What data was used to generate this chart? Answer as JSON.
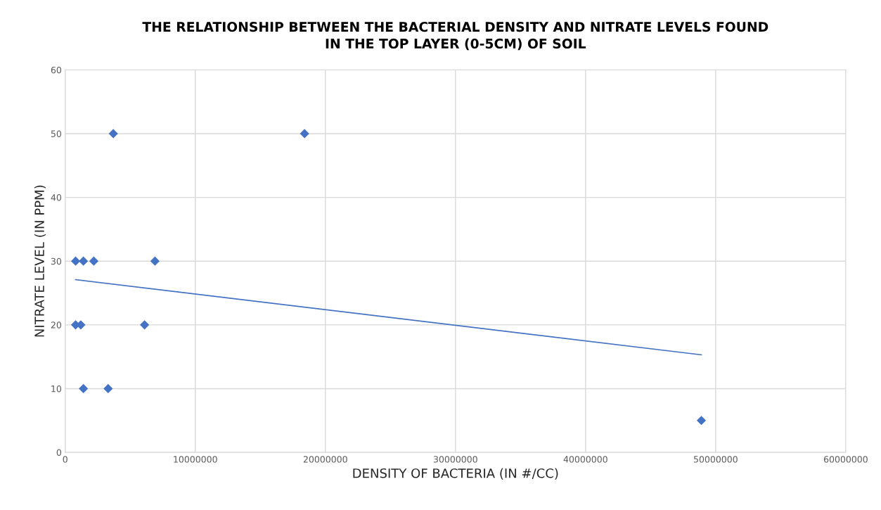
{
  "chart_data": {
    "type": "scatter",
    "title": "THE RELATIONSHIP BETWEEN THE BACTERIAL DENSITY AND NITRATE LEVELS FOUND\nIN THE TOP LAYER (0-5CM) OF SOIL",
    "xlabel": "DENSITY OF BACTERIA (IN #/CC)",
    "ylabel": "NITRATE LEVEL (IN PPM)",
    "series": [
      {
        "color": "#4472c4",
        "marker": "diamond",
        "x": [
          800000,
          1400000,
          2200000,
          6900000,
          800000,
          1200000,
          6100000,
          1400000,
          3300000,
          3700000,
          18400000,
          48900000
        ],
        "values": [
          30,
          30,
          30,
          30,
          20,
          20,
          20,
          10,
          10,
          50,
          50,
          5
        ]
      },
      {
        "type": "line",
        "color": "#4472c4",
        "marker": "none",
        "x": [
          800000,
          48900000
        ],
        "values": [
          27.1,
          15.3
        ]
      }
    ],
    "xlim": [
      0,
      60000000
    ],
    "xticks": [
      0,
      10000000,
      20000000,
      30000000,
      40000000,
      50000000,
      60000000
    ],
    "ylim": [
      0,
      60
    ],
    "yticks": [
      0,
      10,
      20,
      30,
      40,
      50,
      60
    ],
    "grid": true
  }
}
